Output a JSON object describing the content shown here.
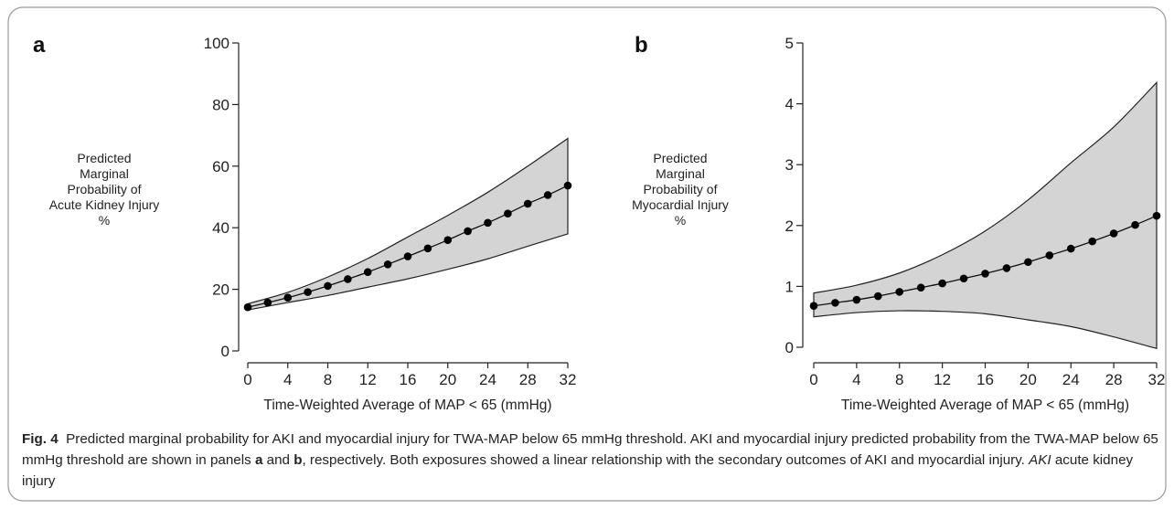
{
  "figure": {
    "caption": {
      "fig_label": "Fig. 4",
      "text_1": "Predicted marginal probability for AKI and myocardial injury for TWA-MAP below 65 mmHg threshold. AKI and myocardial injury predicted probability from the TWA-MAP below 65 mmHg threshold are shown in panels ",
      "panel_a": "a",
      "text_2": " and ",
      "panel_b": "b",
      "text_3": ", respectively. Both exposures showed a linear relationship with the secondary outcomes of AKI and myocardial injury. ",
      "abbr": "AKI",
      "text_4": " acute kidney injury"
    }
  },
  "chart_data": [
    {
      "panel": "a",
      "type": "line",
      "xlabel": "Time-Weighted Average of MAP < 65 (mmHg)",
      "ylabel_lines": [
        "Predicted",
        "Marginal",
        "Probability of",
        "Acute Kidney Injury",
        "%"
      ],
      "x_ticks": [
        0,
        4,
        8,
        12,
        16,
        20,
        24,
        28,
        32
      ],
      "y_ticks": [
        0,
        20,
        40,
        60,
        80,
        100
      ],
      "xlim": [
        0,
        32
      ],
      "ylim": [
        0,
        100
      ],
      "grid": false,
      "series": [
        {
          "x": [
            0,
            2,
            4,
            6,
            8,
            10,
            12,
            14,
            16,
            18,
            20,
            22,
            24,
            26,
            28,
            30,
            32
          ],
          "y": [
            14.2,
            15.7,
            17.3,
            19.1,
            21.1,
            23.3,
            25.6,
            28.1,
            30.7,
            33.3,
            36.0,
            38.9,
            41.6,
            44.6,
            47.8,
            50.6,
            53.7
          ]
        }
      ],
      "ci_band": {
        "x": [
          0,
          4,
          8,
          12,
          16,
          20,
          24,
          28,
          32
        ],
        "lower": [
          13.3,
          15.7,
          18.0,
          20.7,
          23.4,
          26.5,
          29.9,
          34.0,
          38.0
        ],
        "upper": [
          15.3,
          19.0,
          24.0,
          30.0,
          37.0,
          44.0,
          51.5,
          60.0,
          69.0
        ]
      }
    },
    {
      "panel": "b",
      "type": "line",
      "xlabel": "Time-Weighted Average of MAP < 65 (mmHg)",
      "ylabel_lines": [
        "Predicted",
        "Marginal",
        "Probability of",
        "Myocardial Injury",
        "%"
      ],
      "x_ticks": [
        0,
        4,
        8,
        12,
        16,
        20,
        24,
        28,
        32
      ],
      "y_ticks": [
        0,
        1,
        2,
        3,
        4,
        5
      ],
      "xlim": [
        0,
        32
      ],
      "ylim": [
        0,
        5
      ],
      "grid": false,
      "series": [
        {
          "x": [
            0,
            2,
            4,
            6,
            8,
            10,
            12,
            14,
            16,
            18,
            20,
            22,
            24,
            26,
            28,
            30,
            32
          ],
          "y": [
            0.68,
            0.73,
            0.78,
            0.84,
            0.91,
            0.98,
            1.05,
            1.13,
            1.21,
            1.3,
            1.4,
            1.51,
            1.62,
            1.74,
            1.87,
            2.01,
            2.16
          ]
        }
      ],
      "ci_band": {
        "x": [
          0,
          4,
          8,
          12,
          16,
          20,
          24,
          28,
          32
        ],
        "lower": [
          0.5,
          0.57,
          0.6,
          0.59,
          0.55,
          0.45,
          0.34,
          0.17,
          -0.02
        ],
        "upper": [
          0.89,
          1.02,
          1.22,
          1.52,
          1.91,
          2.42,
          3.03,
          3.62,
          4.35
        ]
      }
    }
  ]
}
